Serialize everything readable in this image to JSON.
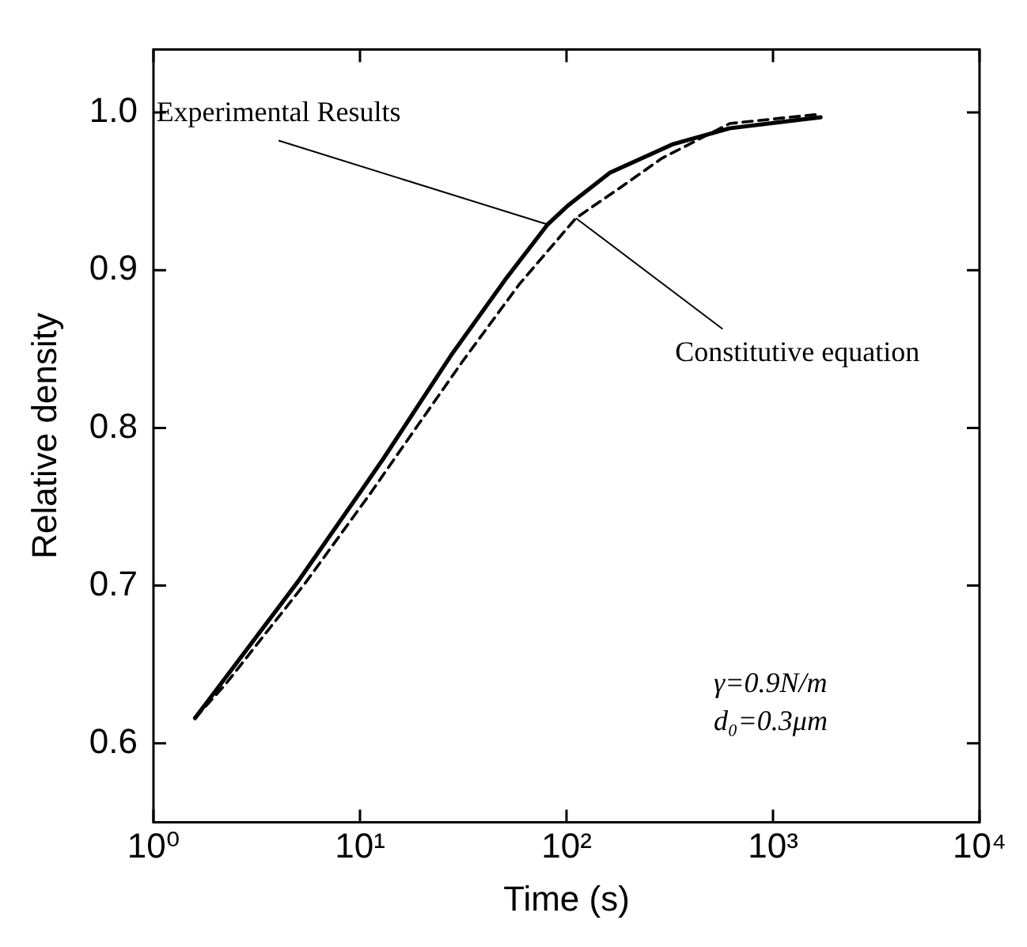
{
  "chart_data": {
    "type": "line",
    "xlabel": "Time (s)",
    "ylabel": "Relative density",
    "log": "x",
    "marker": "none",
    "grid": false,
    "legend": false,
    "xlim": [
      1,
      10000
    ],
    "xticks": [
      {
        "value": 1,
        "label": "10⁰"
      },
      {
        "value": 10,
        "label": "10¹"
      },
      {
        "value": 100,
        "label": "10²"
      },
      {
        "value": 1000,
        "label": "10³"
      },
      {
        "value": 10000,
        "label": "10⁴"
      }
    ],
    "ylim": [
      0.55,
      1.04
    ],
    "yticks": [
      {
        "value": 0.6,
        "label": "0.6"
      },
      {
        "value": 0.7,
        "label": "0.7"
      },
      {
        "value": 0.8,
        "label": "0.8"
      },
      {
        "value": 0.9,
        "label": "0.9"
      },
      {
        "value": 1.0,
        "label": "1.0"
      }
    ],
    "series": [
      {
        "color": "#000000",
        "line_style": "solid",
        "x": [
          1.59,
          4.97,
          10,
          12.9,
          27.6,
          50.5,
          81,
          101.6,
          163,
          329,
          617,
          1700
        ],
        "values": [
          0.616,
          0.702,
          0.759,
          0.78,
          0.846,
          0.894,
          0.929,
          0.941,
          0.962,
          0.98,
          0.99,
          0.997
        ]
      },
      {
        "color": "#000000",
        "line_style": "dashed",
        "x": [
          1.59,
          2.25,
          5.46,
          11.3,
          14.6,
          31.3,
          59,
          111,
          185,
          290,
          617,
          1700
        ],
        "values": [
          0.616,
          0.638,
          0.702,
          0.759,
          0.78,
          0.842,
          0.891,
          0.933,
          0.953,
          0.971,
          0.993,
          0.999
        ]
      }
    ],
    "annotations": [
      {
        "text": "Experimental Results",
        "x": 81,
        "y": 0.929
      },
      {
        "text": "Constitutive equation",
        "x": 111,
        "y": 0.933
      },
      "γ=0.9N/m",
      "d₀=0.3μm"
    ]
  }
}
